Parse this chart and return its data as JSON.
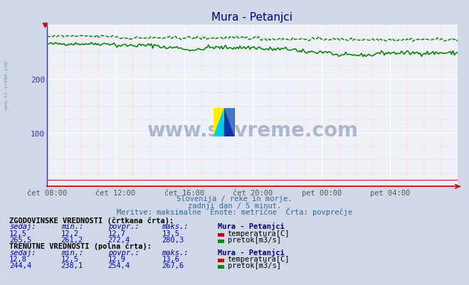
{
  "title": "Mura - Petanjci",
  "title_color": "#000080",
  "bg_color": "#d0d8e8",
  "plot_bg_color": "#eef2f8",
  "watermark_text": "www.si-vreme.com",
  "subtitle1": "Slovenija / reke in morje.",
  "subtitle2": "zadnji dan / 5 minut.",
  "subtitle3": "Meritve: maksimalne  Enote: metrične  Črta: povprečje",
  "n_points": 288,
  "ylim": [
    0,
    300
  ],
  "yticks": [
    100,
    200
  ],
  "xtick_labels": [
    "čet 08:00",
    "čet 12:00",
    "čet 16:00",
    "čet 20:00",
    "pet 00:00",
    "pet 04:00"
  ],
  "xtick_positions": [
    0,
    48,
    96,
    144,
    192,
    240
  ],
  "axis_color": "#cc0000",
  "flow_color": "#008000",
  "temp_color": "#cc0000",
  "temp_solid_level": 12.9,
  "temp_hist_level": 12.7,
  "hist_section": "ZGODOVINSKE VREDNOSTI (črtkana črta):",
  "curr_section": "TRENUTNE VREDNOSTI (polna črta):",
  "col_headers": [
    "sedaj:",
    "min.:",
    "povpr.:",
    "maks.:",
    "Mura - Petanjci"
  ],
  "hist_temp_row": [
    "12,5",
    "12,2",
    "12,7",
    "13,5",
    "temperatura[C]"
  ],
  "hist_flow_row": [
    "265,5",
    "261,2",
    "272,4",
    "280,3",
    "pretok[m3/s]"
  ],
  "curr_temp_row": [
    "12,8",
    "12,5",
    "12,9",
    "13,6",
    "temperatura[C]"
  ],
  "curr_flow_row": [
    "244,4",
    "238,1",
    "254,4",
    "267,6",
    "pretok[m3/s]"
  ],
  "table_bold_color": "#000000",
  "table_header_color": "#000080",
  "table_value_color": "#0000cc",
  "table_label_color": "#0000aa"
}
